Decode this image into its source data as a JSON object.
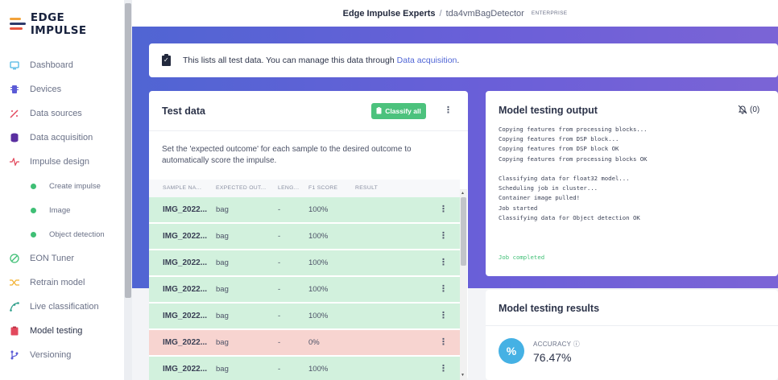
{
  "brand": {
    "logo_text": "EDGE IMPULSE"
  },
  "sidebar": {
    "items": [
      {
        "label": "Dashboard",
        "icon": "monitor-icon"
      },
      {
        "label": "Devices",
        "icon": "chip-icon"
      },
      {
        "label": "Data sources",
        "icon": "wand-icon"
      },
      {
        "label": "Data acquisition",
        "icon": "database-icon"
      },
      {
        "label": "Impulse design",
        "icon": "pulse-icon"
      },
      {
        "label": "Create impulse",
        "icon": "dot-icon"
      },
      {
        "label": "Image",
        "icon": "dot-icon"
      },
      {
        "label": "Object detection",
        "icon": "dot-icon"
      },
      {
        "label": "EON Tuner",
        "icon": "target-icon"
      },
      {
        "label": "Retrain model",
        "icon": "shuffle-icon"
      },
      {
        "label": "Live classification",
        "icon": "graph-icon"
      },
      {
        "label": "Model testing",
        "icon": "clipboard-icon"
      },
      {
        "label": "Versioning",
        "icon": "branch-icon"
      }
    ]
  },
  "header": {
    "org": "Edge Impulse Experts",
    "separator": "/",
    "project": "tda4vmBagDetector",
    "badge": "ENTERPRISE"
  },
  "banner": {
    "text": "This lists all test data. You can manage this data through",
    "link": "Data acquisition",
    "suffix": "."
  },
  "test_data": {
    "title": "Test data",
    "classify_label": "Classify all",
    "description": "Set the 'expected outcome' for each sample to the desired outcome to automatically score the impulse.",
    "columns": [
      "SAMPLE NA...",
      "EXPECTED OUT...",
      "LENG...",
      "F1 SCORE",
      "RESULT"
    ],
    "rows": [
      {
        "name": "IMG_2022...",
        "expected": "bag",
        "length": "-",
        "f1": "100%",
        "status": "ok"
      },
      {
        "name": "IMG_2022...",
        "expected": "bag",
        "length": "-",
        "f1": "100%",
        "status": "ok"
      },
      {
        "name": "IMG_2022...",
        "expected": "bag",
        "length": "-",
        "f1": "100%",
        "status": "ok"
      },
      {
        "name": "IMG_2022...",
        "expected": "bag",
        "length": "-",
        "f1": "100%",
        "status": "ok"
      },
      {
        "name": "IMG_2022...",
        "expected": "bag",
        "length": "-",
        "f1": "100%",
        "status": "ok"
      },
      {
        "name": "IMG_2022...",
        "expected": "bag",
        "length": "-",
        "f1": "0%",
        "status": "bad"
      },
      {
        "name": "IMG_2022...",
        "expected": "bag",
        "length": "-",
        "f1": "100%",
        "status": "ok"
      }
    ]
  },
  "output": {
    "title": "Model testing output",
    "notif_count": "(0)",
    "log_lines": [
      "Copying features from processing blocks...",
      "Copying features from DSP block...",
      "Copying features from DSP block OK",
      "Copying features from processing blocks OK",
      "",
      "Classifying data for float32 model...",
      "Scheduling job in cluster...",
      "Container image pulled!",
      "Job started",
      "Classifying data for Object detection OK",
      "",
      "",
      "",
      "Job completed"
    ]
  },
  "results": {
    "title": "Model testing results",
    "accuracy_label": "ACCURACY",
    "accuracy_value": "76.47%",
    "icon_glyph": "%"
  },
  "colors": {
    "accent": "#5066d6",
    "ok_row": "#d2f1dd",
    "bad_row": "#f7d4d0",
    "success": "#4cc27d"
  }
}
